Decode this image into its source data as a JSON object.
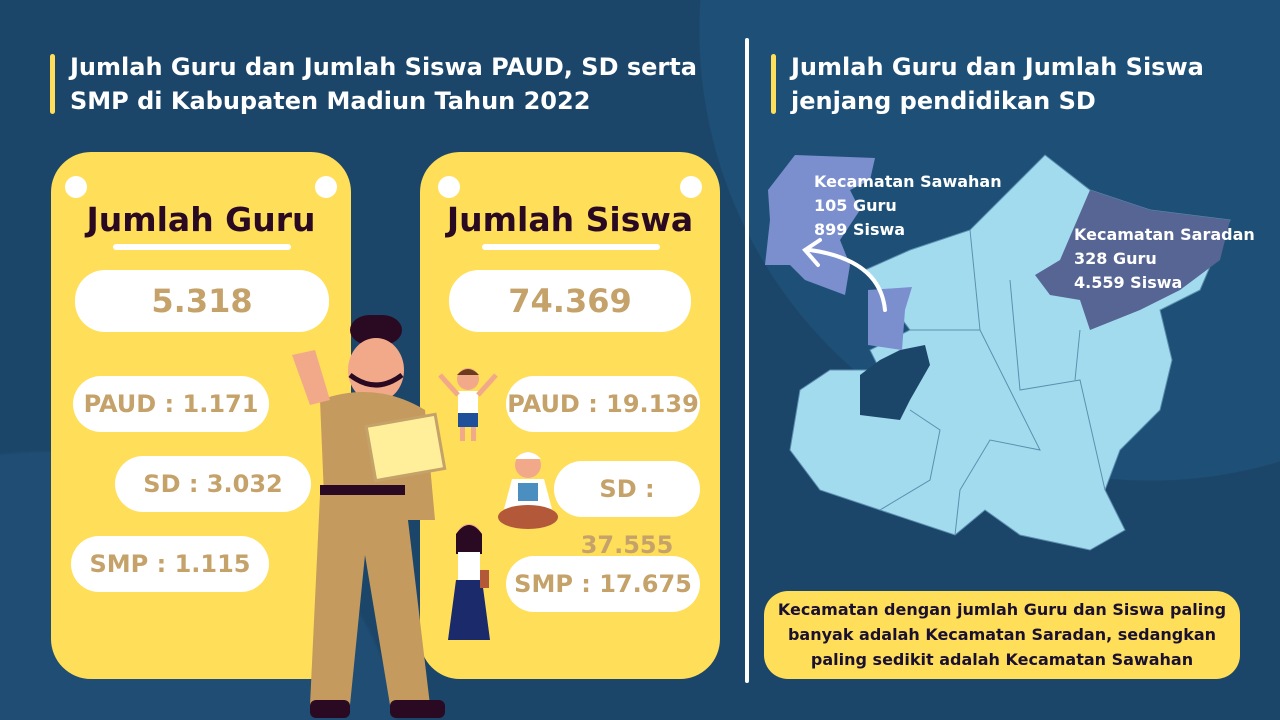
{
  "left": {
    "title_line1": "Jumlah Guru dan Jumlah Siswa PAUD, SD serta",
    "title_line2": "SMP di Kabupaten Madiun Tahun 2022"
  },
  "guru": {
    "heading": "Jumlah Guru",
    "total": "5.318",
    "paud": "PAUD : 1.171",
    "sd": "SD : 3.032",
    "smp": "SMP : 1.115"
  },
  "siswa": {
    "heading": "Jumlah Siswa",
    "total": "74.369",
    "paud": "PAUD : 19.139",
    "sd": "SD : 37.555",
    "smp": "SMP : 17.675"
  },
  "right": {
    "title_line1": "Jumlah Guru dan Jumlah Siswa",
    "title_line2": "jenjang pendidikan SD"
  },
  "map": {
    "sawahan": {
      "name": "Kecamatan Sawahan",
      "guru": "105 Guru",
      "siswa": "899 Siswa",
      "color": "#7b8fcf"
    },
    "saradan": {
      "name": "Kecamatan Saradan",
      "guru": "328 Guru",
      "siswa": "4.559 Siswa",
      "color": "#566593"
    },
    "base_color": "#a3dbee"
  },
  "note": {
    "line1": "Kecamatan dengan jumlah Guru dan Siswa paling",
    "line2": "banyak adalah Kecamatan Saradan, sedangkan",
    "line3": "paling sedikit adalah Kecamatan Sawahan"
  },
  "colors": {
    "background": "#1c4669",
    "card": "#ffde59",
    "number": "#c4a26a",
    "heading": "#2a0a22"
  }
}
